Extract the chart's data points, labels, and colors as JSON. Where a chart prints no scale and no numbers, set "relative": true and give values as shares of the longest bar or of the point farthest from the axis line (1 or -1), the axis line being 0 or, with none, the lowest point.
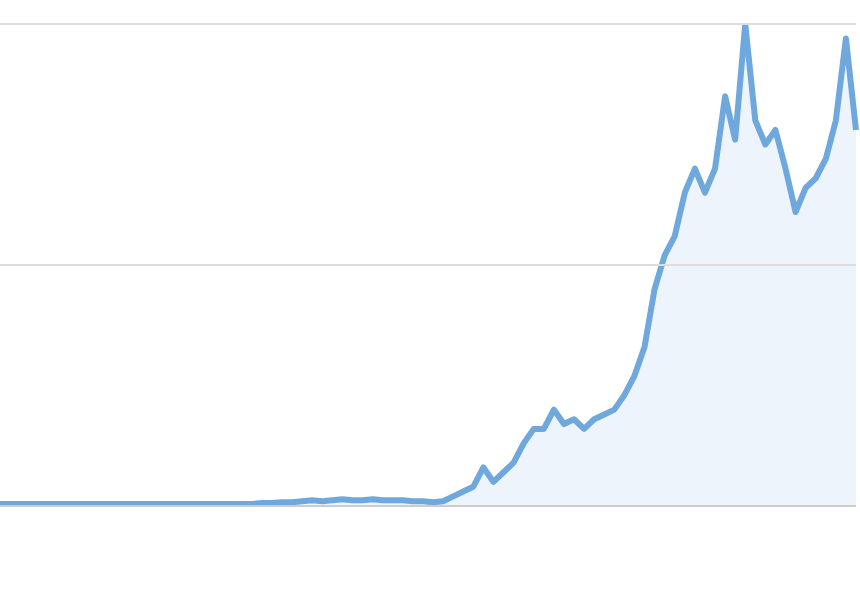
{
  "chart_data": {
    "type": "area",
    "relative": true,
    "ref_lines": [
      {
        "axis": "y",
        "value": 0.5,
        "color": "#dddddd"
      },
      {
        "axis": "y",
        "value": 1,
        "color": "#dddddd"
      }
    ],
    "color": "#6fa8dc",
    "categories": [
      null,
      null,
      null,
      null,
      null,
      null,
      null,
      null,
      null,
      null,
      null,
      null,
      null,
      null,
      null,
      null,
      null,
      null,
      null,
      null,
      null,
      null,
      null,
      null,
      null,
      null,
      null,
      null,
      null,
      null,
      null,
      null,
      null,
      null,
      null,
      null,
      null,
      null,
      null,
      null,
      null,
      null,
      null,
      null,
      null,
      null,
      null,
      null,
      null,
      null,
      null,
      null,
      null,
      null,
      null,
      null,
      null,
      null,
      null,
      null,
      null,
      null,
      null,
      null,
      null,
      null,
      null,
      null,
      null,
      null,
      null,
      null,
      null,
      null,
      null,
      null,
      null,
      null,
      null,
      null,
      null,
      null,
      null,
      null,
      null,
      null
    ],
    "values": [
      0.004,
      0.004,
      0.004,
      0.004,
      0.004,
      0.004,
      0.004,
      0.004,
      0.004,
      0.004,
      0.004,
      0.004,
      0.004,
      0.004,
      0.004,
      0.004,
      0.004,
      0.004,
      0.004,
      0.004,
      0.004,
      0.004,
      0.004,
      0.004,
      0.004,
      0.004,
      0.006,
      0.006,
      0.008,
      0.008,
      0.01,
      0.012,
      0.01,
      0.012,
      0.014,
      0.012,
      0.012,
      0.014,
      0.012,
      0.012,
      0.012,
      0.01,
      0.01,
      0.008,
      0.01,
      0.02,
      0.03,
      0.04,
      0.08,
      0.05,
      0.07,
      0.09,
      0.13,
      0.16,
      0.16,
      0.2,
      0.17,
      0.18,
      0.16,
      0.18,
      0.19,
      0.2,
      0.23,
      0.27,
      0.33,
      0.45,
      0.52,
      0.56,
      0.65,
      0.7,
      0.65,
      0.7,
      0.85,
      0.76,
      1.0,
      0.8,
      0.75,
      0.78,
      0.7,
      0.61,
      0.66,
      0.68,
      0.72,
      0.8,
      0.97,
      0.78
    ]
  }
}
